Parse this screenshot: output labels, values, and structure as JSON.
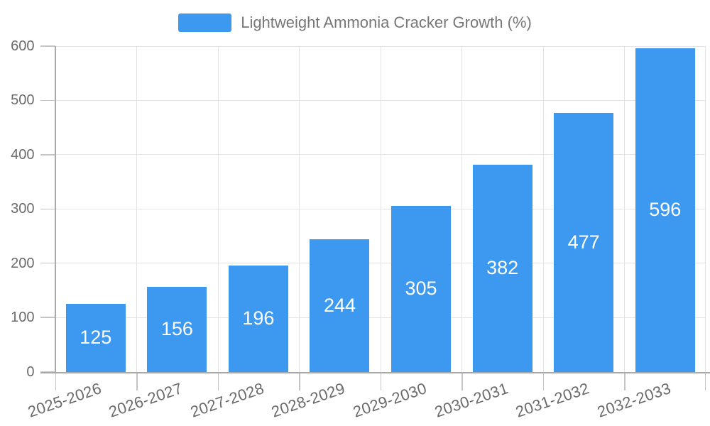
{
  "chart_data": {
    "type": "bar",
    "series_name": "Lightweight Ammonia Cracker Growth (%)",
    "categories": [
      "2025-2026",
      "2026-2027",
      "2027-2028",
      "2028-2029",
      "2029-2030",
      "2030-2031",
      "2031-2032",
      "2032-2033"
    ],
    "values": [
      125,
      156,
      196,
      244,
      305,
      382,
      477,
      596
    ],
    "title": "",
    "xlabel": "",
    "ylabel": "",
    "ylim": [
      0,
      600
    ],
    "yticks": [
      0,
      100,
      200,
      300,
      400,
      500,
      600
    ],
    "grid": true,
    "legend_position": "top-center",
    "value_label_position": "inside-center",
    "x_label_rotation_deg": -19
  },
  "colors": {
    "bar": "#3D99F0",
    "grid_line": "#E3E3E3",
    "axis_line": "#A9A9A9",
    "tick": "#C4C4C4",
    "tick_label": "#6B6B6B",
    "legend_text": "#777777",
    "value_label": "#FFFFFF",
    "background": "#FFFFFF"
  }
}
